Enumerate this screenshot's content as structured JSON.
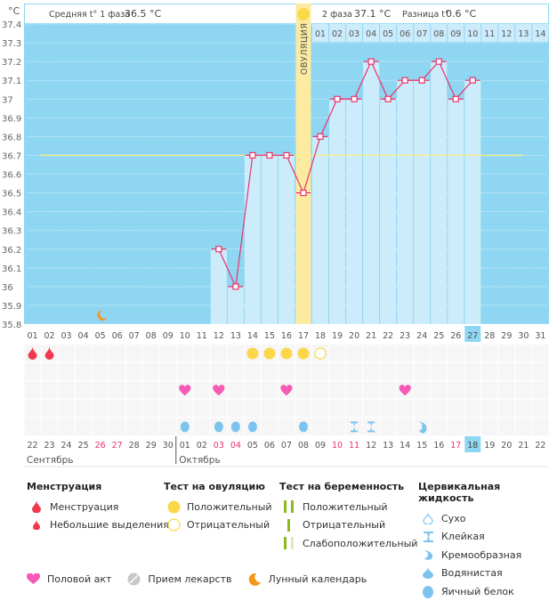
{
  "header": {
    "unit": "°C",
    "phase1_label": "Средняя t° 1 фаза",
    "phase1_value": "36.5 °C",
    "phase2_label": "2 фаза",
    "phase2_value": "37.1 °C",
    "diff_label": "Разница t°",
    "diff_value": "0.6 °C",
    "ovulation_label": "ОВУЛЯЦИЯ"
  },
  "colors": {
    "background_plot": "#8fd6f2",
    "bar_fill": "#cdecfb",
    "line": "#e8336b",
    "ovulation": "#fceaa0",
    "coverline": "#f5f08a",
    "menstruation": "#f0384f",
    "heart": "#f55ab5",
    "ovulation_test": "#fbd84a",
    "cervical": "#7dc3ef",
    "moon": "#f49819",
    "today": "#8fd6f2",
    "weekend": "#e8336b"
  },
  "chart_data": {
    "type": "line",
    "title": "",
    "ylabel": "°C",
    "ylim": [
      35.8,
      37.4
    ],
    "yticks": [
      "37.4",
      "37.3",
      "37.2",
      "37.1",
      "37",
      "36.9",
      "36.8",
      "36.7",
      "36.6",
      "36.5",
      "36.4",
      "36.3",
      "36.2",
      "36.1",
      "36",
      "35.9",
      "35.8"
    ],
    "coverline": 36.7,
    "cycle_days": [
      "01",
      "02",
      "03",
      "04",
      "05",
      "06",
      "07",
      "08",
      "09",
      "10",
      "11",
      "12",
      "13",
      "14",
      "15",
      "16",
      "17",
      "18",
      "19",
      "20",
      "21",
      "22",
      "23",
      "24",
      "25",
      "26",
      "27",
      "28",
      "29",
      "30",
      "31"
    ],
    "phase2_days": [
      "01",
      "02",
      "03",
      "04",
      "05",
      "06",
      "07",
      "08",
      "09",
      "10",
      "11",
      "12",
      "13",
      "14"
    ],
    "ovulation_day": "17",
    "today_cycle_day": "27",
    "series": [
      {
        "name": "Базальная температура",
        "days": [
          12,
          13,
          14,
          15,
          16,
          17,
          18,
          19,
          20,
          21,
          22,
          23,
          24,
          25,
          26,
          27
        ],
        "values": [
          36.2,
          36.0,
          36.7,
          36.7,
          36.7,
          36.5,
          36.8,
          37.0,
          37.0,
          37.2,
          37.0,
          37.1,
          37.1,
          37.2,
          37.0,
          37.1
        ]
      }
    ],
    "dates": [
      "22",
      "23",
      "24",
      "25",
      "26",
      "27",
      "28",
      "29",
      "30",
      "01",
      "02",
      "03",
      "04",
      "05",
      "06",
      "07",
      "08",
      "09",
      "10",
      "11",
      "12",
      "13",
      "14",
      "15",
      "16",
      "17",
      "18",
      "19",
      "20",
      "21",
      "22"
    ],
    "weekend_dates_idx": [
      4,
      5,
      11,
      12,
      18,
      19,
      25
    ],
    "today_date_idx": 26,
    "months": [
      {
        "label": "Сентябрь",
        "start_idx": 0
      },
      {
        "label": "Октябрь",
        "start_idx": 9
      }
    ],
    "markers": {
      "menstruation_days": [
        1,
        2
      ],
      "moon_day": 5,
      "ovulation_test_positive_days": [
        14,
        15,
        16,
        17
      ],
      "ovulation_test_negative_days": [
        18
      ],
      "intercourse_days": [
        10,
        12,
        16,
        23
      ],
      "egg_white_days": [
        10,
        12,
        13,
        14,
        17
      ],
      "sticky_days": [
        20,
        21
      ],
      "creamy_days": [
        24
      ]
    }
  },
  "legend": {
    "menstruation": {
      "title": "Менструация",
      "items": [
        "Менструация",
        "Небольшие выделения"
      ]
    },
    "ovulation_test": {
      "title": "Тест на овуляцию",
      "items": [
        "Положительный",
        "Отрицательный"
      ]
    },
    "pregnancy_test": {
      "title": "Тест на беременность",
      "items": [
        "Положительный",
        "Отрицательный",
        "Слабоположительный"
      ]
    },
    "cervical": {
      "title": "Цервикальная жидкость",
      "items": [
        "Сухо",
        "Клейкая",
        "Кремообразная",
        "Водянистая",
        "Яичный белок"
      ]
    },
    "bottom": [
      "Половой акт",
      "Прием лекарств",
      "Лунный календарь"
    ]
  }
}
